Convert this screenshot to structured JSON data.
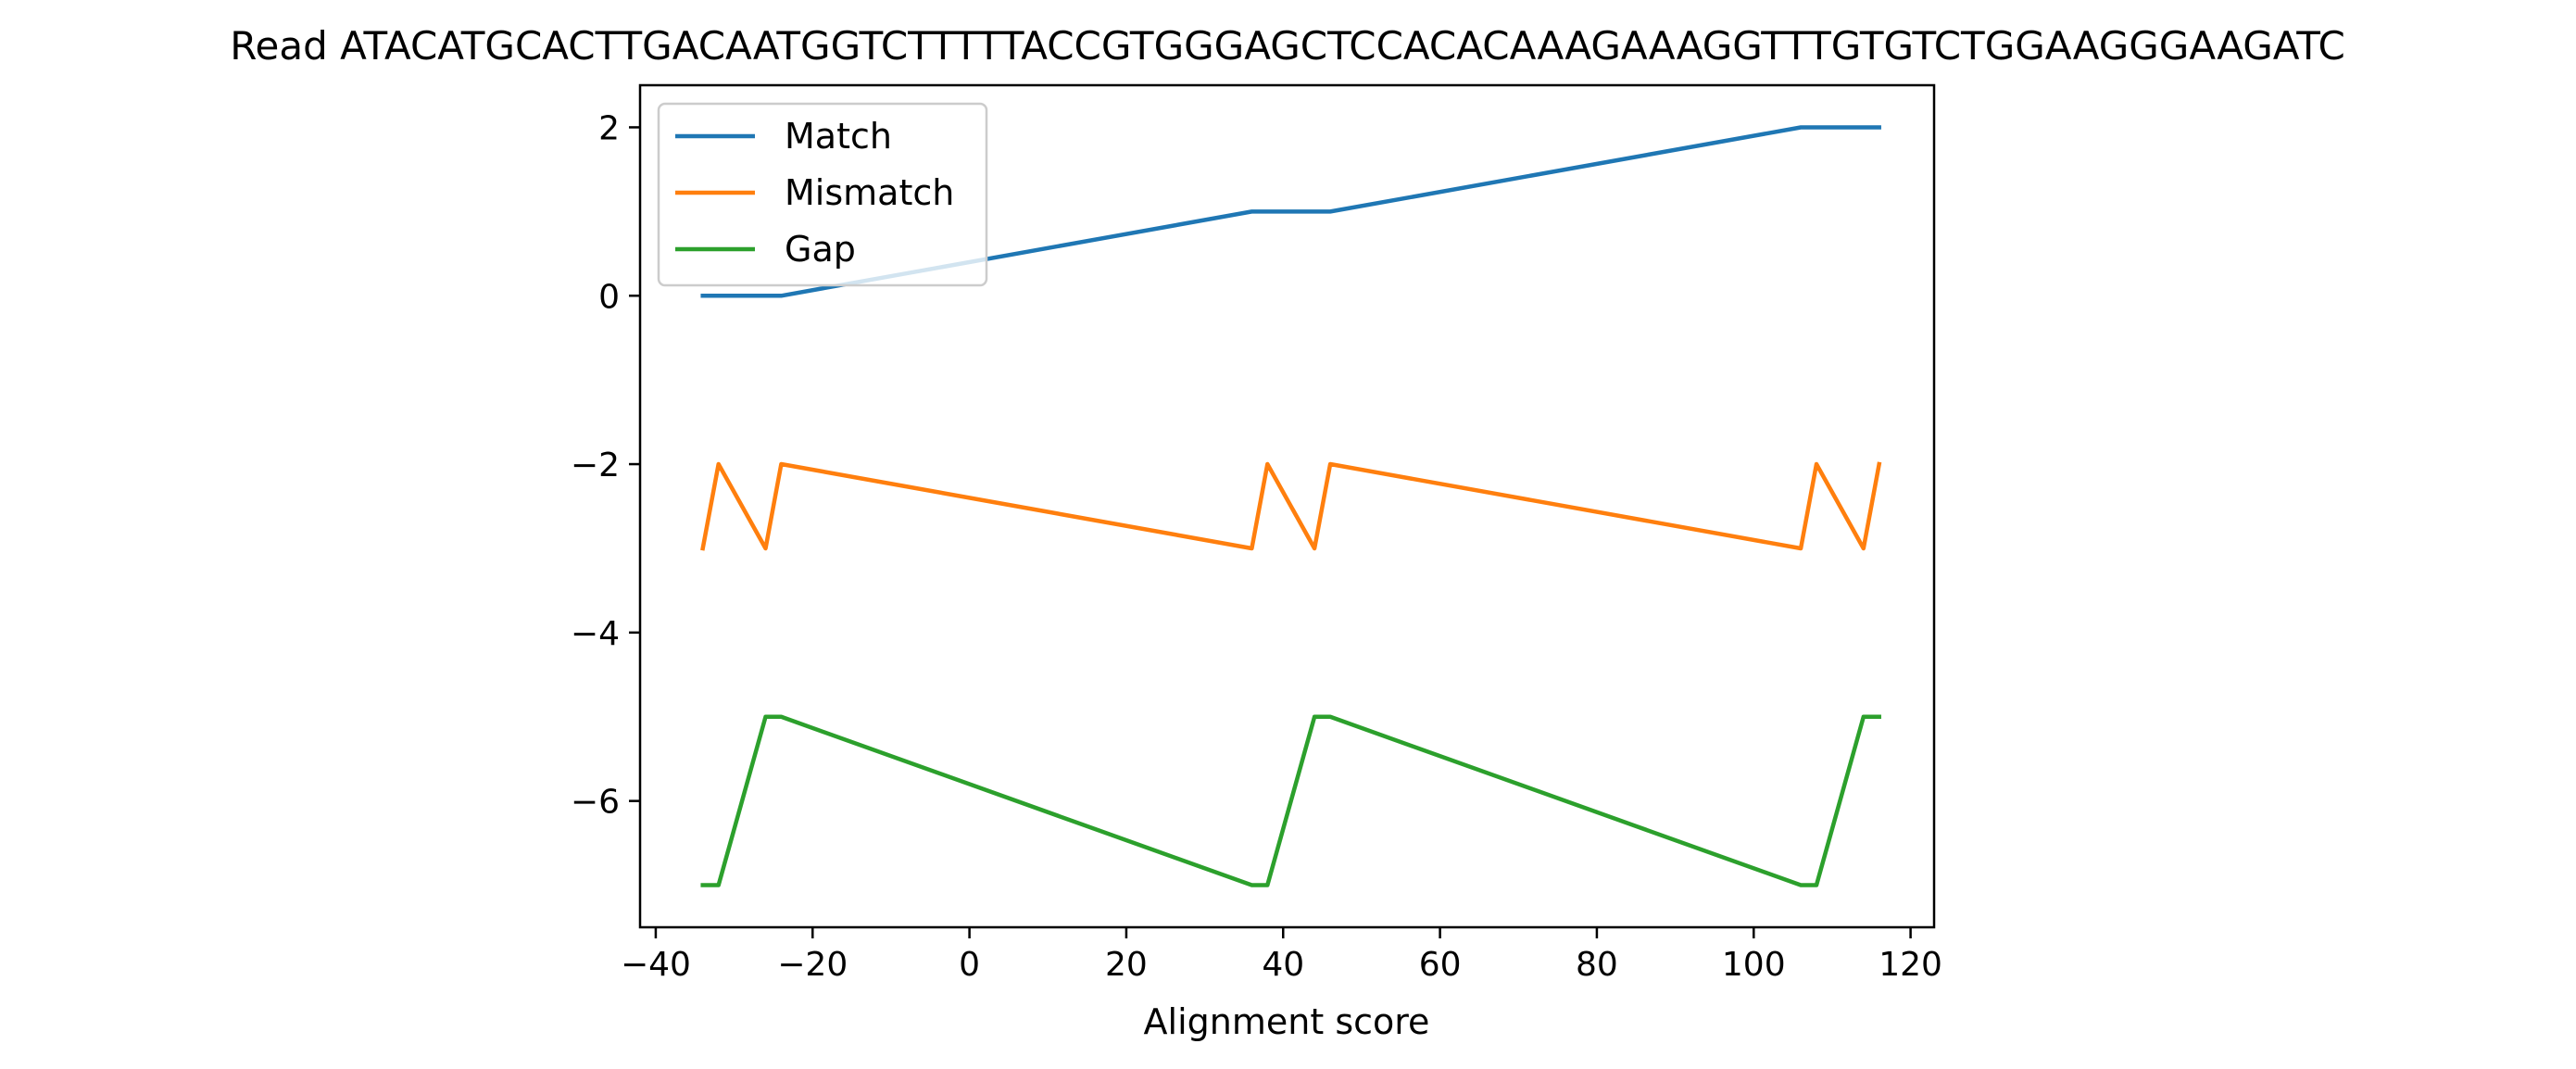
{
  "chart_data": {
    "type": "line",
    "title": "Read ATACATGCACTTGACAATGGTCTTTTTACCGTGGGAGCTCCACACAAAGAAAGGTTTGTGTCTGGAAGGGAAGATC",
    "xlabel": "Alignment score",
    "ylabel": "",
    "xlim": [
      -42,
      123
    ],
    "ylim": [
      -7.5,
      2.5
    ],
    "xticks": [
      -40,
      -20,
      0,
      20,
      40,
      60,
      80,
      100,
      120
    ],
    "yticks": [
      2,
      0,
      -2,
      -4,
      -6
    ],
    "x_tick_labels": [
      "−40",
      "−20",
      "0",
      "20",
      "40",
      "60",
      "80",
      "100",
      "120"
    ],
    "y_tick_labels": [
      "2",
      "0",
      "−2",
      "−4",
      "−6"
    ],
    "grid": false,
    "legend_position": "top-left",
    "series": [
      {
        "name": "Match",
        "color": "#1f77b4",
        "x": [
          -34,
          -32,
          -26,
          -24,
          36,
          38,
          44,
          46,
          106,
          108,
          114,
          116
        ],
        "y": [
          0,
          0,
          0,
          0,
          1,
          1,
          1,
          1,
          2,
          2,
          2,
          2
        ]
      },
      {
        "name": "Mismatch",
        "color": "#ff7f0e",
        "x": [
          -34,
          -32,
          -26,
          -24,
          36,
          38,
          44,
          46,
          106,
          108,
          114,
          116
        ],
        "y": [
          -3,
          -2,
          -3,
          -2,
          -3,
          -2,
          -3,
          -2,
          -3,
          -2,
          -3,
          -2
        ]
      },
      {
        "name": "Gap",
        "color": "#2ca02c",
        "x": [
          -34,
          -32,
          -26,
          -24,
          36,
          38,
          44,
          46,
          106,
          108,
          114,
          116
        ],
        "y": [
          -7,
          -7,
          -5,
          -5,
          -7,
          -7,
          -5,
          -5,
          -7,
          -7,
          -5,
          -5
        ]
      }
    ]
  }
}
